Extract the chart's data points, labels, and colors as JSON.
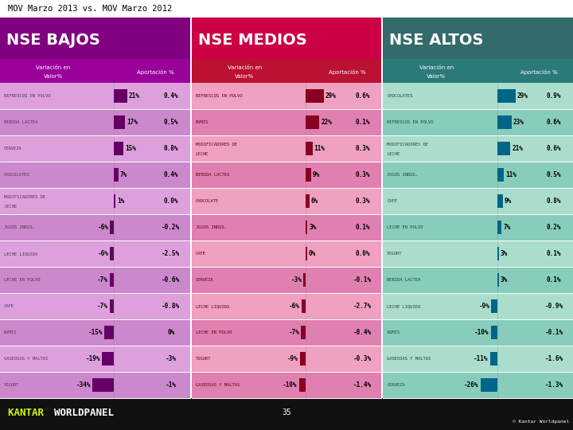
{
  "title": "MOV Marzo 2013 vs. MOV Marzo 2012",
  "page_num": "35",
  "sections": [
    {
      "name": "NSE BAJOS",
      "header_bg": "#800080",
      "subheader_bg": "#9A009A",
      "row_bg_even": "#DDA0DD",
      "row_bg_odd": "#CC88CC",
      "bar_color": "#660066",
      "label_color": "#553355",
      "rows": [
        {
          "label": "REFRESCOS EN POLVO",
          "label2": "",
          "var": 21,
          "aport": "0.4%",
          "var_str": "21%"
        },
        {
          "label": "BEBIDA LACTEA",
          "label2": "",
          "var": 17,
          "aport": "0.5%",
          "var_str": "17%"
        },
        {
          "label": "CERVEZA",
          "label2": "",
          "var": 15,
          "aport": "0.8%",
          "var_str": "15%"
        },
        {
          "label": "CHOCOLATES",
          "label2": "",
          "var": 7,
          "aport": "0.4%",
          "var_str": "7%"
        },
        {
          "label": "MODIFICADORES DE",
          "label2": "LECHE",
          "var": 1,
          "aport": "0.0%",
          "var_str": "1%"
        },
        {
          "label": "JUGOS INDUS.",
          "label2": "",
          "var": -6,
          "aport": "-0.2%",
          "var_str": "-6%"
        },
        {
          "label": "LECHE LIQUIDA",
          "label2": "",
          "var": -6,
          "aport": "-2.5%",
          "var_str": "-6%"
        },
        {
          "label": "LECHE EN POLVO",
          "label2": "",
          "var": -7,
          "aport": "-0.6%",
          "var_str": "-7%"
        },
        {
          "label": "CAFÉ",
          "label2": "",
          "var": -7,
          "aport": "-0.8%",
          "var_str": "-7%"
        },
        {
          "label": "KUMIS",
          "label2": "",
          "var": -15,
          "aport": "0%",
          "var_str": "-15%"
        },
        {
          "label": "GASEOSAS Y MALTAS",
          "label2": "",
          "var": -19,
          "aport": "-3%",
          "var_str": "-19%"
        },
        {
          "label": "YOGURT",
          "label2": "",
          "var": -34,
          "aport": "-1%",
          "var_str": "-34%"
        }
      ]
    },
    {
      "name": "NSE MEDIOS",
      "header_bg": "#CC0044",
      "subheader_bg": "#BB1133",
      "row_bg_even": "#F0A0C0",
      "row_bg_odd": "#E080B0",
      "bar_color": "#880022",
      "label_color": "#660022",
      "rows": [
        {
          "label": "REFRESCOS EN POLVO",
          "label2": "",
          "var": 29,
          "aport": "0.6%",
          "var_str": "29%"
        },
        {
          "label": "KUMIS",
          "label2": "",
          "var": 22,
          "aport": "0.1%",
          "var_str": "22%"
        },
        {
          "label": "MODIFICADORES DE",
          "label2": "LECHE",
          "var": 11,
          "aport": "0.3%",
          "var_str": "11%"
        },
        {
          "label": "BEBIDA LACTEA",
          "label2": "",
          "var": 9,
          "aport": "0.3%",
          "var_str": "9%"
        },
        {
          "label": "CHOCOLATE",
          "label2": "",
          "var": 6,
          "aport": "0.3%",
          "var_str": "6%"
        },
        {
          "label": "JUGOS INDUS.",
          "label2": "",
          "var": 3,
          "aport": "0.1%",
          "var_str": "3%"
        },
        {
          "label": "CAFÉ",
          "label2": "",
          "var": 0,
          "aport": "0.0%",
          "var_str": "0%"
        },
        {
          "label": "CERVEZA",
          "label2": "",
          "var": -3,
          "aport": "-0.1%",
          "var_str": "-3%"
        },
        {
          "label": "LECHE LIQUIDA",
          "label2": "",
          "var": -6,
          "aport": "-2.7%",
          "var_str": "-6%"
        },
        {
          "label": "LECHE EN POLVO",
          "label2": "",
          "var": -7,
          "aport": "-0.4%",
          "var_str": "-7%"
        },
        {
          "label": "YOGURT",
          "label2": "",
          "var": -9,
          "aport": "-0.3%",
          "var_str": "-9%"
        },
        {
          "label": "GASEOSAS Y MALTAS",
          "label2": "",
          "var": -10,
          "aport": "-1.4%",
          "var_str": "-10%"
        }
      ]
    },
    {
      "name": "NSE ALTOS",
      "header_bg": "#336B6B",
      "subheader_bg": "#2A7A7A",
      "row_bg_even": "#AADDCC",
      "row_bg_odd": "#88CCBB",
      "bar_color": "#006688",
      "label_color": "#224444",
      "rows": [
        {
          "label": "CHOCOLATES",
          "label2": "",
          "var": 29,
          "aport": "0.9%",
          "var_str": "29%"
        },
        {
          "label": "REFRESCOS EN POLVO",
          "label2": "",
          "var": 23,
          "aport": "0.6%",
          "var_str": "23%"
        },
        {
          "label": "MODIFICADORES DE",
          "label2": "LECHE",
          "var": 21,
          "aport": "0.6%",
          "var_str": "21%"
        },
        {
          "label": "JUGOS INDUS.",
          "label2": "",
          "var": 11,
          "aport": "0.5%",
          "var_str": "11%"
        },
        {
          "label": "CAFÉ",
          "label2": "",
          "var": 9,
          "aport": "0.8%",
          "var_str": "9%"
        },
        {
          "label": "LECHE EN POLVO",
          "label2": "",
          "var": 7,
          "aport": "0.2%",
          "var_str": "7%"
        },
        {
          "label": "YOGURT",
          "label2": "",
          "var": 3,
          "aport": "0.1%",
          "var_str": "3%"
        },
        {
          "label": "BEBIDA LACTEA",
          "label2": "",
          "var": 3,
          "aport": "0.1%",
          "var_str": "3%"
        },
        {
          "label": "LECHE LIQUIDA",
          "label2": "",
          "var": -9,
          "aport": "-0.9%",
          "var_str": "-9%"
        },
        {
          "label": "KUMIS",
          "label2": "",
          "var": -10,
          "aport": "-0.1%",
          "var_str": "-10%"
        },
        {
          "label": "GASEOSAS Y MALTAS",
          "label2": "",
          "var": -11,
          "aport": "-1.6%",
          "var_str": "-11%"
        },
        {
          "label": "CERVEZA",
          "label2": "",
          "var": -26,
          "aport": "-1.3%",
          "var_str": "-26%"
        }
      ]
    }
  ]
}
